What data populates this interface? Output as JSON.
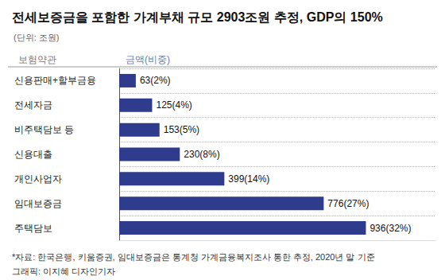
{
  "chart_data": {
    "type": "bar",
    "orientation": "horizontal",
    "title": "전세보증금을 포함한 가계부채 규모 2903조원 추정, GDP의 150%",
    "subtitle": "(단위: 조원)",
    "y_label": "보험약관",
    "x_label": "금액(비중)",
    "categories": [
      "신용판매+할부금융",
      "전세자금",
      "비주택담보 등",
      "신용대출",
      "개인사업자",
      "임대보증금",
      "주택담보"
    ],
    "values": [
      63,
      125,
      153,
      230,
      399,
      776,
      936
    ],
    "value_labels": [
      "63(2%)",
      "125(4%)",
      "153(5%)",
      "230(8%)",
      "399(14%)",
      "776(27%)",
      "936(32%)"
    ],
    "color": "#2f3b8c",
    "xlim": [
      0,
      1200
    ],
    "data_labels": true,
    "tick_labels": "y",
    "grid": false,
    "notes": [
      "*자료: 한국은행, 키움증권, 임대보증금은 통계청 가계금융복지조사 통한 추정, 2020년 말 기준",
      "그래픽: 이지혜 디자인기자"
    ]
  }
}
